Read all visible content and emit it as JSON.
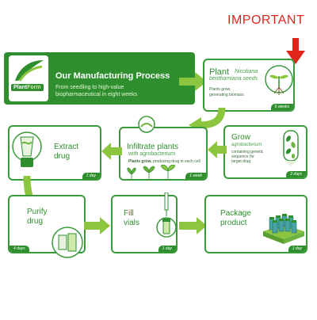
{
  "annotation": {
    "label": "IMPORTANT",
    "color": "#e0261b"
  },
  "header": {
    "logo_line1": "Plant",
    "logo_line2": "Form",
    "title": "Our Manufacturing Process",
    "subtitle_line1": "From seedling to high-value",
    "subtitle_line2": "biopharmaceutical in eight weeks"
  },
  "colors": {
    "brand": "#2f8f2f",
    "light": "#8cc63f",
    "arrow": "#8cc63f"
  },
  "steps": {
    "plant": {
      "title": "Plant",
      "subtitle_line1": "Nicotiana",
      "subtitle_line2": "benthamiana seeds",
      "note_line1": "Plants grow,",
      "note_line2": "generating biomass",
      "duration": "6 weeks"
    },
    "grow": {
      "title": "Grow",
      "subtitle_line1": "agrobacterium",
      "note_line1": "containing genetic",
      "note_line2": "sequence for",
      "note_line3": "target drug",
      "duration": "2 days"
    },
    "infiltrate": {
      "title_line1": "Infiltrate plants",
      "subtitle_line1": "with agrobacterium",
      "note_bold": "Plants grow,",
      "note_rest": "producing drug in each cell",
      "duration": "1 week"
    },
    "extract": {
      "title_line1": "Extract",
      "title_line2": "drug",
      "duration": "1 day"
    },
    "purify": {
      "title_line1": "Purify",
      "title_line2": "drug",
      "duration": "4 days"
    },
    "fill": {
      "title_line1": "Fill",
      "title_line2": "vials",
      "duration": "1 day"
    },
    "package": {
      "title_line1": "Package",
      "title_line2": "product",
      "duration": "1 day"
    }
  }
}
